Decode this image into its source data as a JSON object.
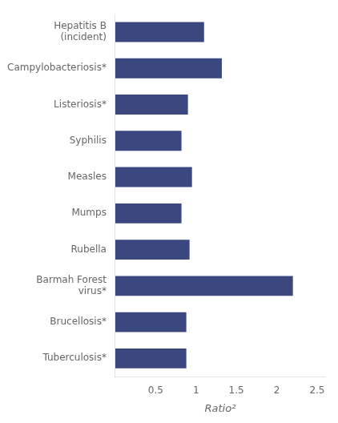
{
  "chart_data": {
    "type": "bar",
    "orientation": "horizontal",
    "categories": [
      "Tuberculosis*",
      "Brucellosis*",
      "Barmah Forest\nvirus*",
      "Rubella",
      "Mumps",
      "Measles",
      "Syphilis",
      "Listeriosis*",
      "Campylobacteriosis*",
      "Hepatitis B\n(incident)"
    ],
    "values": [
      0.88,
      0.88,
      2.2,
      0.92,
      0.82,
      0.95,
      0.82,
      0.9,
      1.32,
      1.1
    ],
    "color": "#3b4880",
    "xlabel": "Ratio²",
    "xlim": [
      0.0,
      2.6
    ],
    "xticks": [
      0.5,
      1.0,
      1.5,
      2.0,
      2.5
    ],
    "grid": false
  }
}
